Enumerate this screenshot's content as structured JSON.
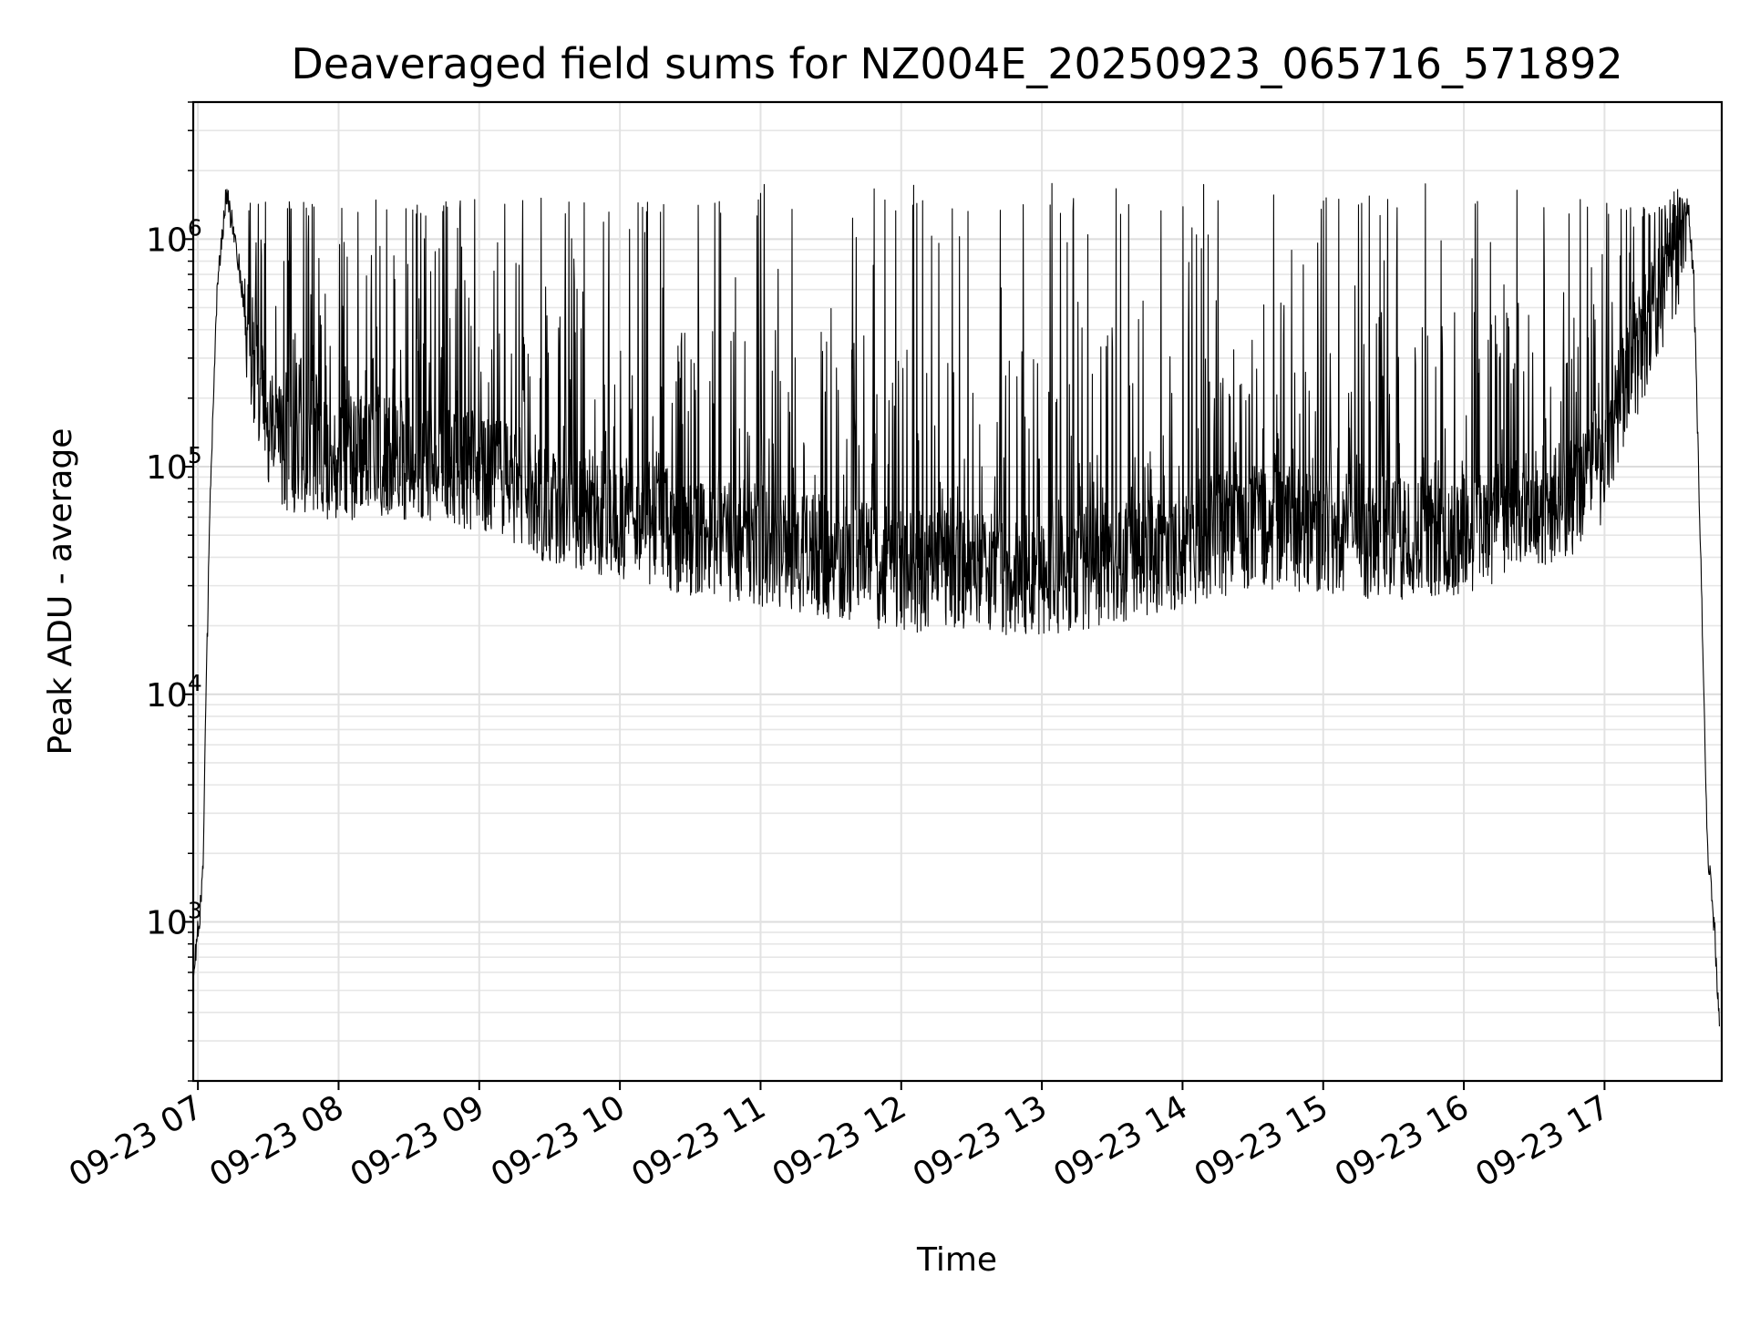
{
  "chart_data": {
    "type": "line",
    "title": "Deaveraged field sums for NZ004E_20250923_065716_571892",
    "xlabel": "Time",
    "ylabel": "Peak ADU - average",
    "yscale": "log",
    "ylim": [
      200,
      4000000
    ],
    "xlim": [
      "2025-09-23 06:58",
      "2025-09-23 17:50"
    ],
    "grid": true,
    "x_ticks": [
      {
        "value": "2025-09-23 07:00",
        "label": "09-23 07"
      },
      {
        "value": "2025-09-23 08:00",
        "label": "09-23 08"
      },
      {
        "value": "2025-09-23 09:00",
        "label": "09-23 09"
      },
      {
        "value": "2025-09-23 10:00",
        "label": "09-23 10"
      },
      {
        "value": "2025-09-23 11:00",
        "label": "09-23 11"
      },
      {
        "value": "2025-09-23 12:00",
        "label": "09-23 12"
      },
      {
        "value": "2025-09-23 13:00",
        "label": "09-23 13"
      },
      {
        "value": "2025-09-23 14:00",
        "label": "09-23 14"
      },
      {
        "value": "2025-09-23 15:00",
        "label": "09-23 15"
      },
      {
        "value": "2025-09-23 16:00",
        "label": "09-23 16"
      },
      {
        "value": "2025-09-23 17:00",
        "label": "09-23 17"
      }
    ],
    "y_ticks": [
      {
        "value": 1000,
        "base": "10",
        "exp": "3"
      },
      {
        "value": 10000,
        "base": "10",
        "exp": "4"
      },
      {
        "value": 100000,
        "base": "10",
        "exp": "5"
      },
      {
        "value": 1000000,
        "base": "10",
        "exp": "6"
      }
    ],
    "series": [
      {
        "color": "#000000",
        "baseline": {
          "x": [
            "2025-09-23 06:58",
            "2025-09-23 07:00",
            "2025-09-23 07:02",
            "2025-09-23 07:05",
            "2025-09-23 07:08",
            "2025-09-23 07:12",
            "2025-09-23 07:16",
            "2025-09-23 07:20",
            "2025-09-23 07:25",
            "2025-09-23 07:30",
            "2025-09-23 07:35",
            "2025-09-23 07:40",
            "2025-09-23 07:50",
            "2025-09-23 08:00",
            "2025-09-23 08:30",
            "2025-09-23 09:00",
            "2025-09-23 09:30",
            "2025-09-23 10:00",
            "2025-09-23 10:30",
            "2025-09-23 11:00",
            "2025-09-23 11:30",
            "2025-09-23 12:00",
            "2025-09-23 12:30",
            "2025-09-23 13:00",
            "2025-09-23 13:30",
            "2025-09-23 14:00",
            "2025-09-23 14:30",
            "2025-09-23 15:00",
            "2025-09-23 15:30",
            "2025-09-23 16:00",
            "2025-09-23 16:30",
            "2025-09-23 16:50",
            "2025-09-23 17:00",
            "2025-09-23 17:10",
            "2025-09-23 17:20",
            "2025-09-23 17:30",
            "2025-09-23 17:35",
            "2025-09-23 17:38",
            "2025-09-23 17:41",
            "2025-09-23 17:44",
            "2025-09-23 17:47",
            "2025-09-23 17:49"
          ],
          "y": [
            600,
            900,
            1500,
            60000,
            550000,
            1600000,
            1000000,
            500000,
            250000,
            160000,
            120000,
            110000,
            105000,
            110000,
            110000,
            95000,
            70000,
            60000,
            50000,
            46000,
            40000,
            35000,
            34000,
            34000,
            38000,
            45000,
            55000,
            52000,
            48000,
            52000,
            65000,
            80000,
            110000,
            250000,
            450000,
            800000,
            1500000,
            700000,
            40000,
            2000,
            900,
            350
          ]
        }
      }
    ]
  }
}
